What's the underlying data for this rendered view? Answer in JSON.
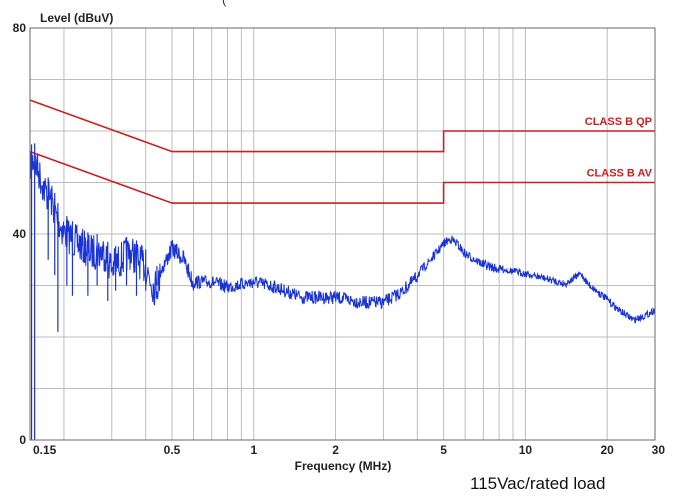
{
  "top_fragment": "(",
  "caption": "115Vac/rated load",
  "chart_data": {
    "type": "line",
    "title": "",
    "ylabel": "Level (dBuV)",
    "xlabel": "Frequency (MHz)",
    "xscale": "log",
    "xlim": [
      0.15,
      30
    ],
    "ylim": [
      0,
      80
    ],
    "grid": true,
    "y_ticks": [
      {
        "value": 0,
        "label": "0"
      },
      {
        "value": 40,
        "label": "40"
      },
      {
        "value": 80,
        "label": "80"
      }
    ],
    "x_ticks": [
      {
        "value": 0.15,
        "label": "0.15"
      },
      {
        "value": 0.5,
        "label": "0.5"
      },
      {
        "value": 1,
        "label": "1"
      },
      {
        "value": 2,
        "label": "2"
      },
      {
        "value": 5,
        "label": "5"
      },
      {
        "value": 10,
        "label": "10"
      },
      {
        "value": 20,
        "label": "20"
      },
      {
        "value": 30,
        "label": "30"
      }
    ],
    "colors": {
      "limit": "#cc1f1f",
      "measurement": "#1a33d6",
      "grid": "#bdbdbd",
      "axis": "#6a6a6a"
    },
    "limit_lines": [
      {
        "name": "CLASS B QP",
        "points": [
          [
            0.15,
            66
          ],
          [
            0.5,
            56
          ],
          [
            5,
            56
          ],
          [
            5,
            60
          ],
          [
            30,
            60
          ]
        ]
      },
      {
        "name": "CLASS B AV",
        "points": [
          [
            0.15,
            56
          ],
          [
            0.5,
            46
          ],
          [
            5,
            46
          ],
          [
            5,
            50
          ],
          [
            30,
            50
          ]
        ]
      }
    ],
    "measurement": {
      "envelope": [
        [
          0.15,
          57
        ],
        [
          0.155,
          58
        ],
        [
          0.16,
          56
        ],
        [
          0.17,
          52
        ],
        [
          0.18,
          50
        ],
        [
          0.19,
          46
        ],
        [
          0.2,
          44
        ],
        [
          0.22,
          42
        ],
        [
          0.25,
          40
        ],
        [
          0.28,
          40
        ],
        [
          0.3,
          37
        ],
        [
          0.35,
          40
        ],
        [
          0.4,
          37
        ],
        [
          0.43,
          33
        ],
        [
          0.47,
          36
        ],
        [
          0.5,
          39
        ],
        [
          0.55,
          37
        ],
        [
          0.6,
          32
        ],
        [
          0.7,
          32
        ],
        [
          0.8,
          31
        ],
        [
          1.0,
          32
        ],
        [
          1.2,
          31
        ],
        [
          1.5,
          29
        ],
        [
          2.0,
          29
        ],
        [
          2.5,
          28
        ],
        [
          3.0,
          28
        ],
        [
          3.5,
          30
        ],
        [
          4.0,
          33
        ],
        [
          4.5,
          36
        ],
        [
          5.0,
          39
        ],
        [
          5.3,
          40
        ],
        [
          5.6,
          39
        ],
        [
          6.0,
          37
        ],
        [
          7.0,
          35
        ],
        [
          8.0,
          34
        ],
        [
          10.0,
          33
        ],
        [
          12.0,
          32
        ],
        [
          14.0,
          31
        ],
        [
          16.0,
          33
        ],
        [
          17.0,
          31
        ],
        [
          20.0,
          28
        ],
        [
          22.0,
          26
        ],
        [
          25.0,
          24
        ],
        [
          28.0,
          25
        ],
        [
          30.0,
          26
        ]
      ],
      "spikes": [
        {
          "x": 0.152,
          "low": 0
        },
        {
          "x": 0.156,
          "low": 0
        },
        {
          "x": 0.175,
          "low": 35
        },
        {
          "x": 0.185,
          "low": 32
        },
        {
          "x": 0.19,
          "low": 21
        },
        {
          "x": 0.205,
          "low": 30
        },
        {
          "x": 0.215,
          "low": 28
        },
        {
          "x": 0.245,
          "low": 28
        },
        {
          "x": 0.265,
          "low": 30
        },
        {
          "x": 0.29,
          "low": 27
        },
        {
          "x": 0.31,
          "low": 29
        },
        {
          "x": 0.34,
          "low": 30
        },
        {
          "x": 0.37,
          "low": 28
        },
        {
          "x": 0.4,
          "low": 29
        },
        {
          "x": 0.44,
          "low": 30
        }
      ]
    }
  }
}
